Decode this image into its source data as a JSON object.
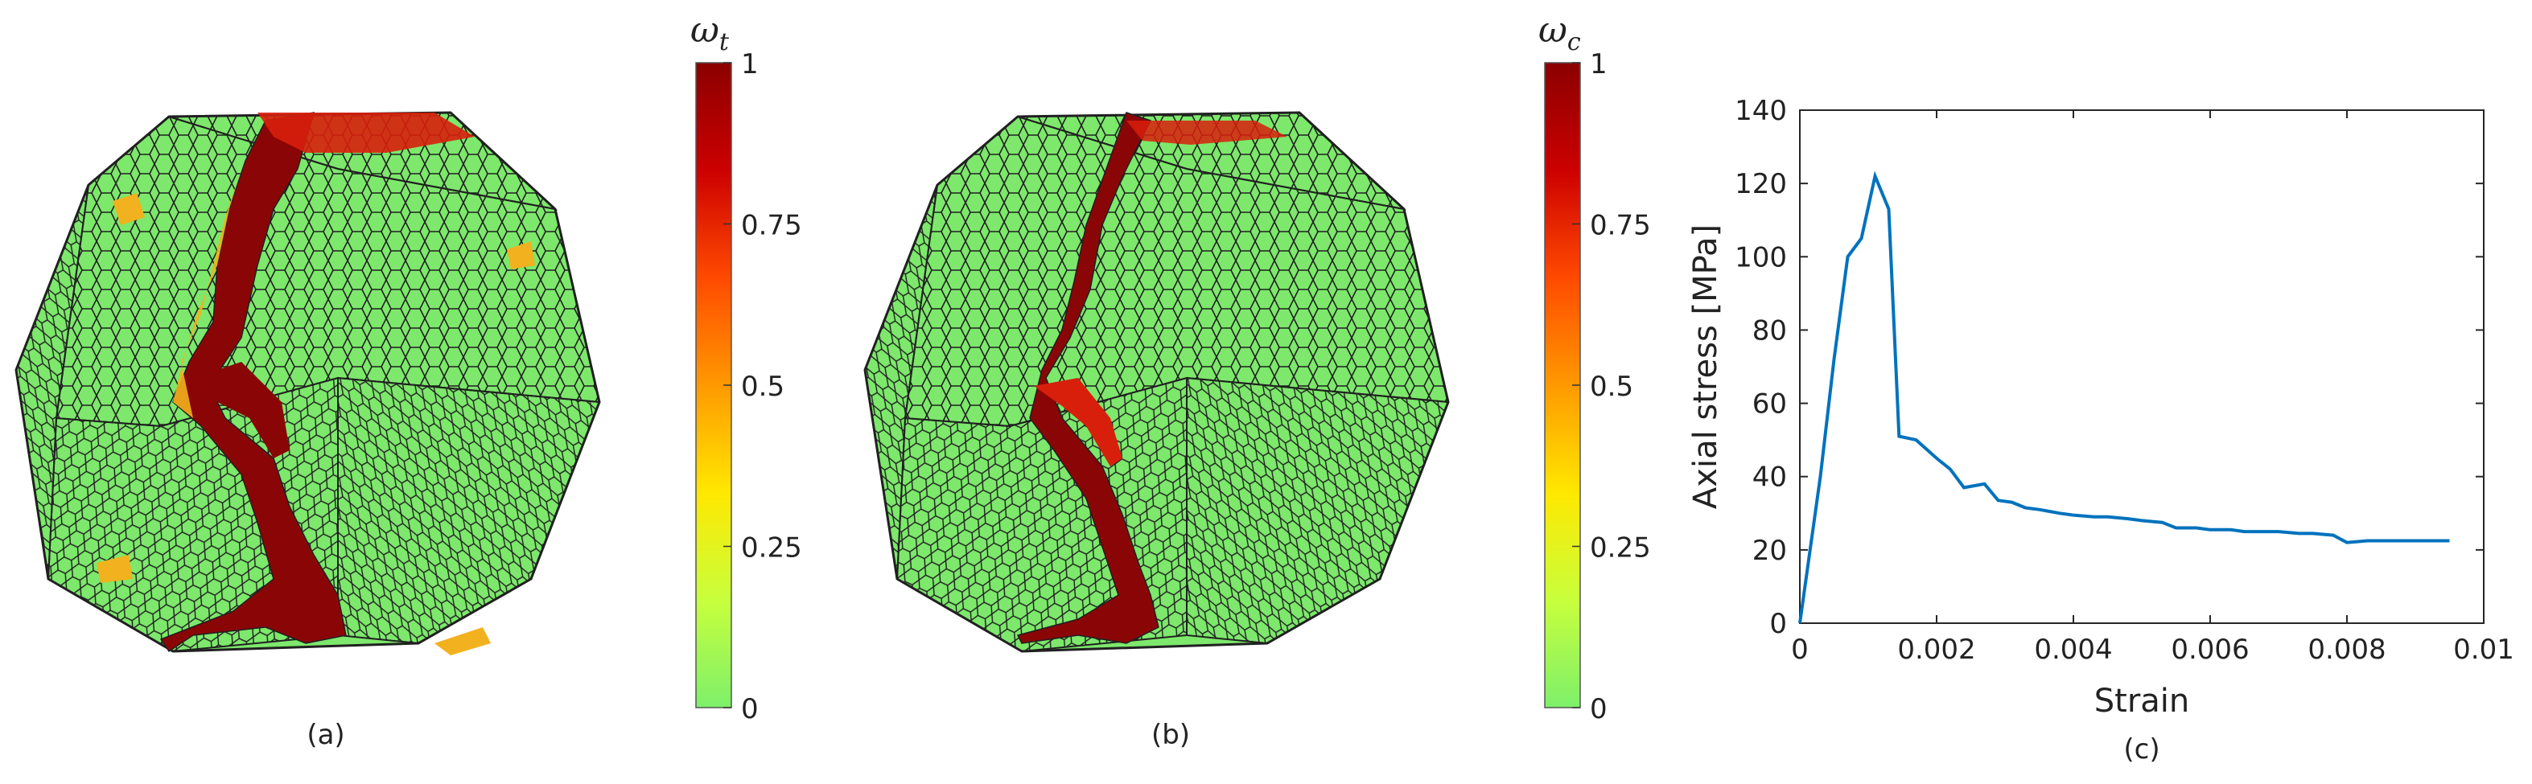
{
  "panels": {
    "a": {
      "caption": "(a)"
    },
    "b": {
      "caption": "(b)"
    },
    "c": {
      "caption": "(c)"
    }
  },
  "colorbars": [
    {
      "symbol": "ω",
      "subscript": "t",
      "ticks": [
        "1",
        "0.75",
        "0.5",
        "0.25",
        "0"
      ],
      "colors": [
        "#8b0000",
        "#cc0000",
        "#ff4a00",
        "#ff9900",
        "#ffe800",
        "#c8ff3c",
        "#7df06a"
      ]
    },
    {
      "symbol": "ω",
      "subscript": "c",
      "ticks": [
        "1",
        "0.75",
        "0.5",
        "0.25",
        "0"
      ],
      "colors": [
        "#8b0000",
        "#cc0000",
        "#ff4a00",
        "#ff9900",
        "#ffe800",
        "#c8ff3c",
        "#7df06a"
      ]
    }
  ],
  "mesh_colors": {
    "base": "#7de86c",
    "damage_dark": "#8a0606",
    "damage_mid": "#d81f0c",
    "damage_light": "#f2b11e",
    "edge": "#202020"
  },
  "chart_data": {
    "type": "line",
    "xlabel": "Strain",
    "ylabel": "Axial stress [MPa]",
    "xlim": [
      0,
      0.01
    ],
    "ylim": [
      0,
      140
    ],
    "xticks": [
      0,
      0.002,
      0.004,
      0.006,
      0.008,
      0.01
    ],
    "xtick_labels": [
      "0",
      "0.002",
      "0.004",
      "0.006",
      "0.008",
      "0.01"
    ],
    "yticks": [
      0,
      20,
      40,
      60,
      80,
      100,
      120,
      140
    ],
    "ytick_labels": [
      "0",
      "20",
      "40",
      "60",
      "80",
      "100",
      "120",
      "140"
    ],
    "grid": false,
    "line_color": "#0072bd",
    "series": [
      {
        "x": [
          0,
          0.0003,
          0.0005,
          0.0007,
          0.0009,
          0.0011,
          0.0013,
          0.00145,
          0.0017,
          0.002,
          0.0022,
          0.0024,
          0.0027,
          0.0029,
          0.0031,
          0.0033,
          0.0035,
          0.0038,
          0.004,
          0.0043,
          0.0045,
          0.0048,
          0.005,
          0.0053,
          0.0055,
          0.0058,
          0.006,
          0.0063,
          0.0065,
          0.0068,
          0.007,
          0.0073,
          0.0075,
          0.0078,
          0.008,
          0.0083,
          0.0085,
          0.0088,
          0.009,
          0.0093,
          0.0095
        ],
        "y": [
          0,
          40,
          72,
          100,
          105,
          122,
          113,
          51,
          50,
          45,
          42,
          37,
          38,
          33.5,
          33,
          31.5,
          31,
          30,
          29.5,
          29,
          29,
          28.5,
          28,
          27.5,
          26,
          26,
          25.5,
          25.5,
          25,
          25,
          25,
          24.5,
          24.5,
          24,
          22,
          22.5,
          22.5,
          22.5,
          22.5,
          22.5,
          22.5
        ]
      }
    ]
  }
}
